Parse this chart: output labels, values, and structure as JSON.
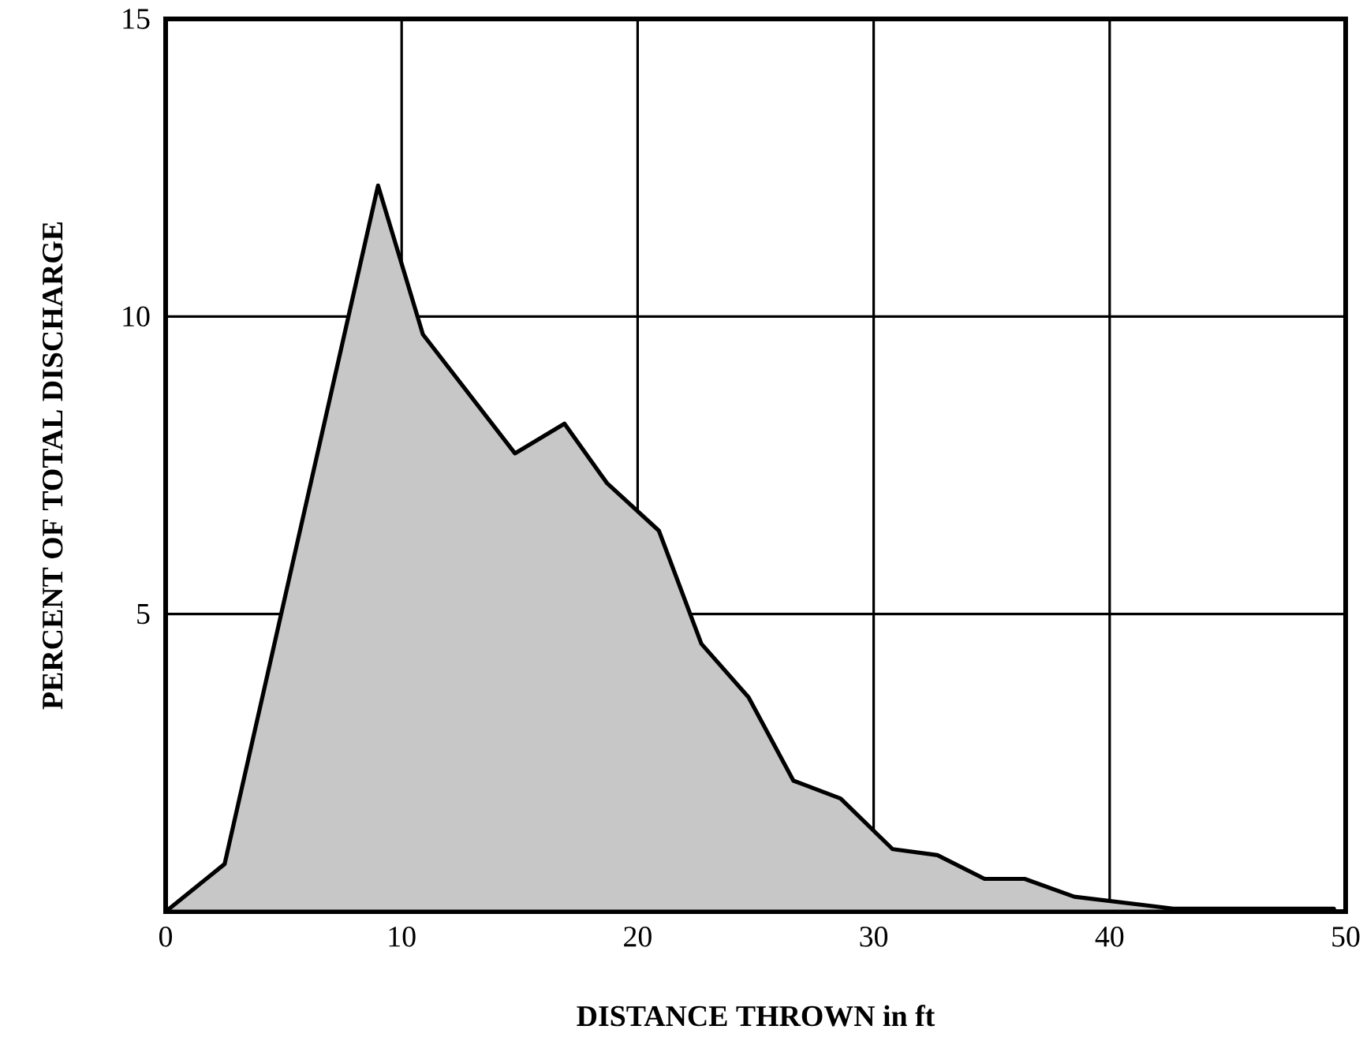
{
  "chart_data": {
    "type": "area",
    "xlabel": "DISTANCE THROWN in ft",
    "ylabel": "PERCENT OF TOTAL DISCHARGE",
    "x": [
      0,
      2.5,
      9,
      10.9,
      14.8,
      16.9,
      18.7,
      20.9,
      22.7,
      24.7,
      26.6,
      28.6,
      30.8,
      32.7,
      34.7,
      36.4,
      38.5,
      42.7,
      49.5
    ],
    "values": [
      0,
      0.8,
      12.2,
      9.7,
      7.7,
      8.2,
      7.2,
      6.4,
      4.5,
      3.6,
      2.2,
      1.9,
      1.05,
      0.95,
      0.55,
      0.55,
      0.25,
      0.05,
      0.05
    ],
    "color": "#000000",
    "xlim": [
      0,
      50
    ],
    "ylim": [
      0,
      15
    ],
    "xticks": [
      0,
      10,
      20,
      30,
      40,
      50
    ],
    "yticks": [
      {
        "value": 0,
        "label": null
      },
      5,
      10,
      15
    ],
    "grid": true,
    "marker": "none",
    "line_style": "solid"
  }
}
